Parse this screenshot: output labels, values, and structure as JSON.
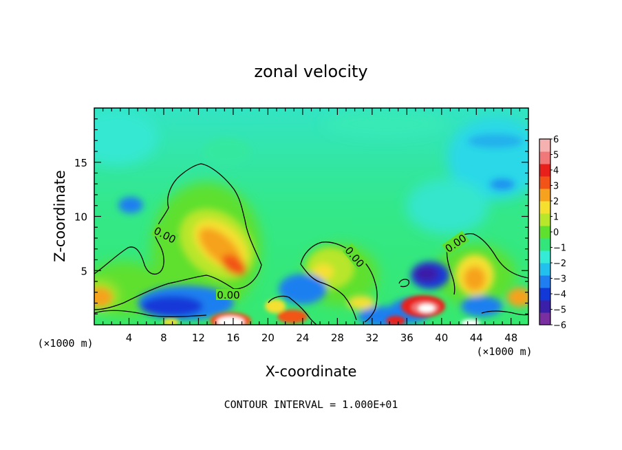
{
  "chart_data": {
    "type": "heatmap",
    "title": "zonal velocity",
    "xlabel": "X-coordinate",
    "ylabel": "Z-coordinate",
    "x_unit_left": "(×1000 m)",
    "x_unit_right": "(×1000 m)",
    "footer": "CONTOUR INTERVAL = 1.000E+01",
    "xlim": [
      0,
      50
    ],
    "ylim": [
      0,
      20
    ],
    "x_ticks": [
      "4",
      "8",
      "12",
      "16",
      "20",
      "24",
      "28",
      "32",
      "36",
      "40",
      "44",
      "48"
    ],
    "y_ticks": [
      "5",
      "10",
      "15"
    ],
    "colorbar": {
      "range": [
        -6,
        6
      ],
      "ticks": [
        "6",
        "5",
        "4",
        "3",
        "2",
        "1",
        "0",
        "−1",
        "−2",
        "−3",
        "−4",
        "−5",
        "−6"
      ],
      "colors": [
        "#7a2fa0",
        "#3a1fa8",
        "#1238d8",
        "#1f7ff0",
        "#22c0ec",
        "#34ecd6",
        "#33e67c",
        "#5fe02e",
        "#b8e62a",
        "#f5e030",
        "#f6a21e",
        "#f25418",
        "#e8201c",
        "#f07878",
        "#f5b0b0"
      ]
    },
    "contour_labels": [
      "0.00",
      "0.00",
      "0.00",
      "0.00"
    ],
    "features": [
      {
        "x": 15.5,
        "z": 6,
        "value": 3.5
      },
      {
        "x": 13,
        "z": 9,
        "value": 2.5
      },
      {
        "x": 43,
        "z": 4.5,
        "value": 3
      },
      {
        "x": 1,
        "z": 2.5,
        "value": 3
      },
      {
        "x": 26,
        "z": 5,
        "value": 1.5
      },
      {
        "x": 38,
        "z": 4.5,
        "value": -4.5
      },
      {
        "x": 38,
        "z": 1.5,
        "value": 5
      },
      {
        "x": 11,
        "z": 2,
        "value": -4
      },
      {
        "x": 34,
        "z": 2,
        "value": -3.5
      },
      {
        "x": 14,
        "z": 0.5,
        "value": 6.5
      },
      {
        "x": 43.5,
        "z": 0.3,
        "value": 6.5
      },
      {
        "x": 4,
        "z": 11,
        "value": -2.8
      },
      {
        "x": 47,
        "z": 17,
        "value": -2.6
      },
      {
        "x": 47,
        "z": 13,
        "value": -2.8
      },
      {
        "x": 7,
        "z": 16,
        "value": -1.8
      },
      {
        "x": 34,
        "z": 14,
        "value": -1.3
      }
    ]
  }
}
